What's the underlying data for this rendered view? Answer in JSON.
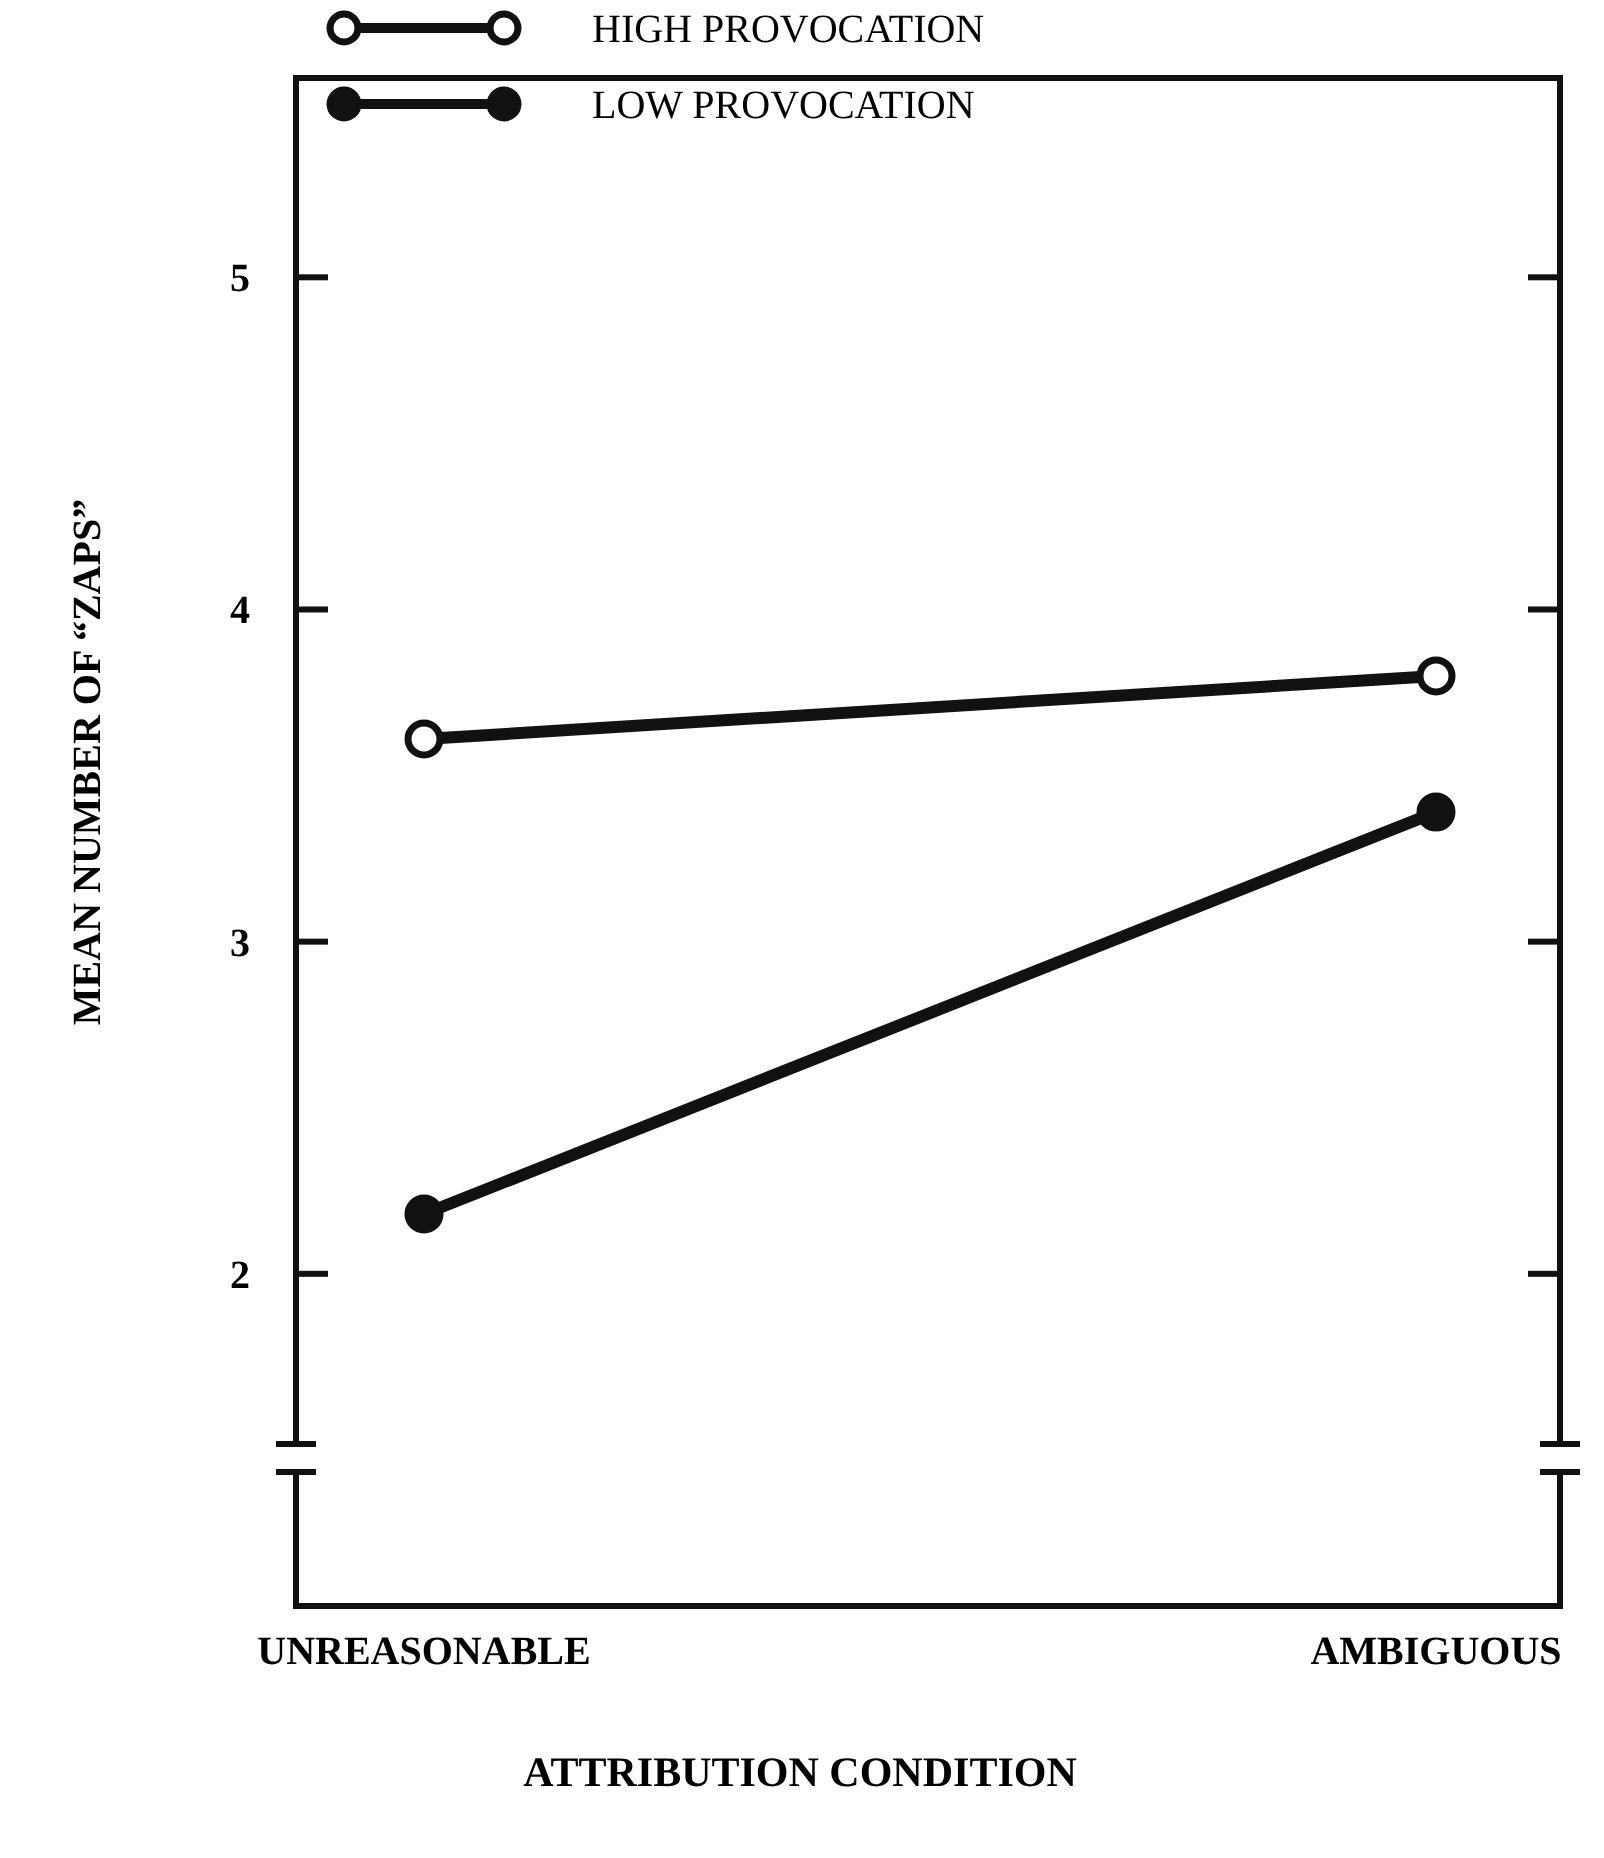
{
  "chart_data": {
    "type": "line",
    "xlabel": "ATTRIBUTION CONDITION",
    "ylabel": "MEAN NUMBER OF “ZAPS”",
    "categories": [
      "UNREASONABLE",
      "AMBIGUOUS"
    ],
    "series": [
      {
        "name": "HIGH PROVOCATION",
        "color": "#111111",
        "values": [
          3.61,
          3.8
        ]
      },
      {
        "name": "LOW PROVOCATION",
        "color": "#111111",
        "values": [
          2.18,
          3.39
        ]
      }
    ],
    "ylim": [
      1,
      5.6
    ],
    "yticks": [
      2,
      3,
      4,
      5
    ],
    "legend": "top",
    "marker": "circle",
    "line_style": "solid"
  }
}
